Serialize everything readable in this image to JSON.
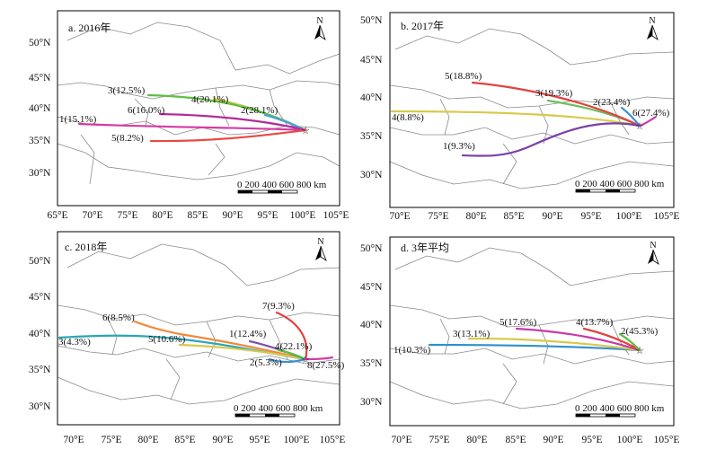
{
  "panels": [
    {
      "id": "a",
      "title": "a. 2016年",
      "lon_labels": [
        "65°E",
        "70°E",
        "75°E",
        "80°E",
        "85°E",
        "90°E",
        "95°E",
        "100°E",
        "105°E"
      ],
      "lat_labels": [
        "50°N",
        "45°N",
        "40°N",
        "35°N",
        "30°N"
      ],
      "scale_label": "0 200 400 600 800 km",
      "north_label": "N",
      "trajectories": [
        {
          "label": "1(15.1%)",
          "color": "#d63aa2"
        },
        {
          "label": "2(28.1%)",
          "color": "#4f9fd9"
        },
        {
          "label": "3(12.5%)",
          "color": "#5cbf43"
        },
        {
          "label": "4(20.1%)",
          "color": "#d3c449"
        },
        {
          "label": "5(8.2%)",
          "color": "#e84a43"
        },
        {
          "label": "6(16.0%)",
          "color": "#b42a9b"
        }
      ]
    },
    {
      "id": "b",
      "title": "b. 2017年",
      "lon_labels": [
        "70°E",
        "75°E",
        "80°E",
        "85°E",
        "90°E",
        "95°E",
        "100°E",
        "105°E"
      ],
      "lat_labels": [
        "50°N",
        "45°N",
        "40°N",
        "35°N",
        "30°N"
      ],
      "scale_label": "0 200 400 600 800 km",
      "north_label": "N",
      "trajectories": [
        {
          "label": "1(9.3%)",
          "color": "#7a3fa8"
        },
        {
          "label": "2(23.4%)",
          "color": "#3a8fd6"
        },
        {
          "label": "3(19.3%)",
          "color": "#6cbf5a"
        },
        {
          "label": "4(8.8%)",
          "color": "#d8c94e"
        },
        {
          "label": "5(18.8%)",
          "color": "#e3413f"
        },
        {
          "label": "6(27.4%)",
          "color": "#c83aa6"
        }
      ]
    },
    {
      "id": "c",
      "title": "c. 2018年",
      "lon_labels": [
        "70°E",
        "75°E",
        "80°E",
        "85°E",
        "90°E",
        "95°E",
        "100°E",
        "105°E"
      ],
      "lat_labels": [
        "50°N",
        "45°N",
        "40°N",
        "35°N",
        "30°N"
      ],
      "scale_label": "0 200 400 600 800 km",
      "north_label": "N",
      "trajectories": [
        {
          "label": "1(12.4%)",
          "color": "#7b52b0"
        },
        {
          "label": "2(5.3%)",
          "color": "#3a8fd6"
        },
        {
          "label": "3(4.3%)",
          "color": "#2aa6b8"
        },
        {
          "label": "4(22.1%)",
          "color": "#5cbf43"
        },
        {
          "label": "5(10.6%)",
          "color": "#d8c94e"
        },
        {
          "label": "6(8.5%)",
          "color": "#ef8a38"
        },
        {
          "label": "7(9.3%)",
          "color": "#e3413f"
        },
        {
          "label": "8(27.5%)",
          "color": "#d63aa2"
        }
      ]
    },
    {
      "id": "d",
      "title": "d. 3年平均",
      "lon_labels": [
        "70°E",
        "75°E",
        "80°E",
        "85°E",
        "90°E",
        "95°E",
        "100°E",
        "105°E"
      ],
      "lat_labels": [
        "50°N",
        "45°N",
        "40°N",
        "35°N",
        "30°N"
      ],
      "scale_label": "0 200 400 600 800 km",
      "north_label": "N",
      "trajectories": [
        {
          "label": "1(10.3%)",
          "color": "#2f8fcf"
        },
        {
          "label": "2(45.3%)",
          "color": "#5cbf43"
        },
        {
          "label": "3(13.1%)",
          "color": "#d8c94e"
        },
        {
          "label": "4(13.7%)",
          "color": "#e3413f"
        },
        {
          "label": "5(17.6%)",
          "color": "#c83aa6"
        }
      ]
    }
  ]
}
